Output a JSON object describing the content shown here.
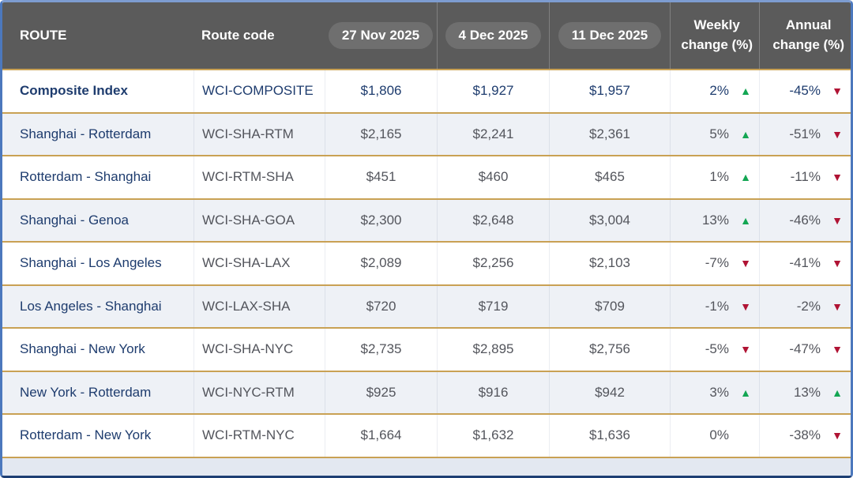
{
  "icons": {
    "up": "▲",
    "down": "▼"
  },
  "colors": {
    "header_bg": "#5b5b5b",
    "pill_bg": "#6f6f6f",
    "gold_divider": "#c9a154",
    "navy_text": "#1e3c6e",
    "gray_text": "#53555c",
    "alt_row_bg": "#eef1f6",
    "footer_bg": "#e3e8f1",
    "frame_border": "#4c78bd",
    "up_green": "#13a653",
    "down_red": "#b01334"
  },
  "chart_data": {
    "type": "table",
    "columns": [
      "ROUTE",
      "Route code",
      "27 Nov 2025",
      "4 Dec 2025",
      "11 Dec 2025",
      "Weekly change (%)",
      "Annual change (%)"
    ],
    "header": {
      "route": "ROUTE",
      "route_code": "Route code",
      "dates": [
        "27 Nov 2025",
        "4 Dec 2025",
        "11 Dec 2025"
      ],
      "weekly_line1": "Weekly",
      "weekly_line2": "change (%)",
      "annual_line1": "Annual",
      "annual_line2": "change (%)"
    },
    "rows": [
      {
        "route": "Composite Index",
        "code": "WCI-COMPOSITE",
        "prices": [
          "$1,806",
          "$1,927",
          "$1,957"
        ],
        "weekly": "2%",
        "weekly_dir": "up",
        "annual": "-45%",
        "annual_dir": "down",
        "emphasis": true
      },
      {
        "route": "Shanghai - Rotterdam",
        "code": "WCI-SHA-RTM",
        "prices": [
          "$2,165",
          "$2,241",
          "$2,361"
        ],
        "weekly": "5%",
        "weekly_dir": "up",
        "annual": "-51%",
        "annual_dir": "down"
      },
      {
        "route": "Rotterdam - Shanghai",
        "code": "WCI-RTM-SHA",
        "prices": [
          "$451",
          "$460",
          "$465"
        ],
        "weekly": "1%",
        "weekly_dir": "up",
        "annual": "-11%",
        "annual_dir": "down"
      },
      {
        "route": "Shanghai - Genoa",
        "code": "WCI-SHA-GOA",
        "prices": [
          "$2,300",
          "$2,648",
          "$3,004"
        ],
        "weekly": "13%",
        "weekly_dir": "up",
        "annual": "-46%",
        "annual_dir": "down"
      },
      {
        "route": "Shanghai - Los Angeles",
        "code": "WCI-SHA-LAX",
        "prices": [
          "$2,089",
          "$2,256",
          "$2,103"
        ],
        "weekly": "-7%",
        "weekly_dir": "down",
        "annual": "-41%",
        "annual_dir": "down"
      },
      {
        "route": "Los Angeles - Shanghai",
        "code": "WCI-LAX-SHA",
        "prices": [
          "$720",
          "$719",
          "$709"
        ],
        "weekly": "-1%",
        "weekly_dir": "down",
        "annual": "-2%",
        "annual_dir": "down"
      },
      {
        "route": "Shanghai - New York",
        "code": "WCI-SHA-NYC",
        "prices": [
          "$2,735",
          "$2,895",
          "$2,756"
        ],
        "weekly": "-5%",
        "weekly_dir": "down",
        "annual": "-47%",
        "annual_dir": "down"
      },
      {
        "route": "New York - Rotterdam",
        "code": "WCI-NYC-RTM",
        "prices": [
          "$925",
          "$916",
          "$942"
        ],
        "weekly": "3%",
        "weekly_dir": "up",
        "annual": "13%",
        "annual_dir": "up"
      },
      {
        "route": "Rotterdam - New York",
        "code": "WCI-RTM-NYC",
        "prices": [
          "$1,664",
          "$1,632",
          "$1,636"
        ],
        "weekly": "0%",
        "weekly_dir": "none",
        "annual": "-38%",
        "annual_dir": "down"
      }
    ]
  }
}
